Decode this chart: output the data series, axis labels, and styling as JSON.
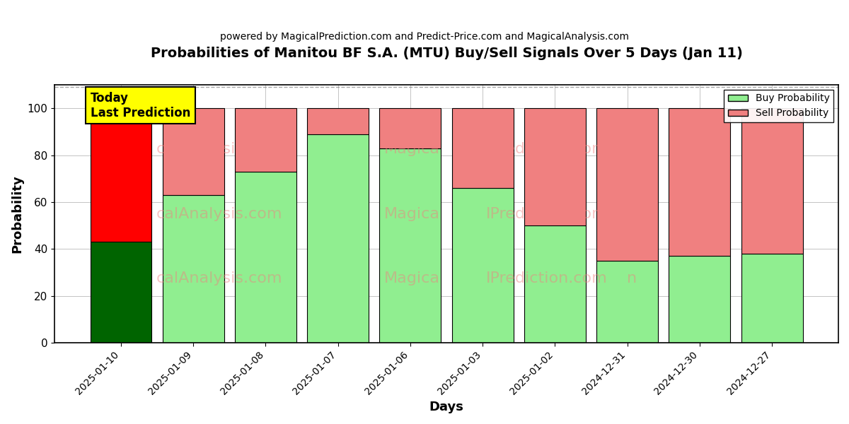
{
  "title": "Probabilities of Manitou BF S.A. (MTU) Buy/Sell Signals Over 5 Days (Jan 11)",
  "subtitle": "powered by MagicalPrediction.com and Predict-Price.com and MagicalAnalysis.com",
  "xlabel": "Days",
  "ylabel": "Probability",
  "categories": [
    "2025-01-10",
    "2025-01-09",
    "2025-01-08",
    "2025-01-07",
    "2025-01-06",
    "2025-01-03",
    "2025-01-02",
    "2024-12-31",
    "2024-12-30",
    "2024-12-27"
  ],
  "buy_values": [
    43,
    63,
    73,
    89,
    83,
    66,
    50,
    35,
    37,
    38
  ],
  "sell_values": [
    57,
    37,
    27,
    11,
    17,
    34,
    50,
    65,
    63,
    62
  ],
  "today_buy_color": "#006400",
  "today_sell_color": "#ff0000",
  "buy_color": "#90ee90",
  "sell_color": "#f08080",
  "today_label_bg": "#ffff00",
  "today_label_text": "Today\nLast Prediction",
  "legend_buy": "Buy Probability",
  "legend_sell": "Sell Probability",
  "ylim": [
    0,
    110
  ],
  "yticks": [
    0,
    20,
    40,
    60,
    80,
    100
  ],
  "dashed_line_y": 109,
  "bar_edgecolor": "#000000",
  "grid_color": "#aaaaaa",
  "figsize": [
    12.0,
    6.0
  ],
  "dpi": 100
}
